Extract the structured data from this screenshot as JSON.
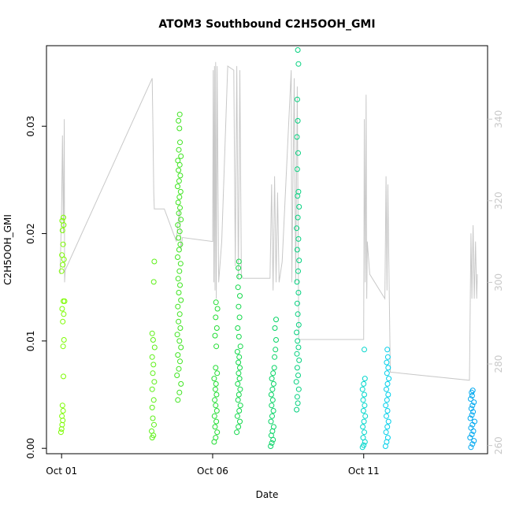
{
  "chart_data": {
    "type": "scatter",
    "title": "ATOM3 Southbound C2H5OOH_GMI",
    "xlabel": "Date",
    "ylabel": "C2H5OOH_GMI",
    "x_ticks": [
      "Oct 01",
      "Oct 06",
      "Oct 11"
    ],
    "y_ticks": [
      "0.00",
      "0.01",
      "0.02",
      "0.03"
    ],
    "y2_ticks": [
      "260",
      "280",
      "300",
      "320",
      "340"
    ],
    "xlim": [
      -0.5,
      14.1
    ],
    "ylim": [
      -0.0005,
      0.0375
    ],
    "y2lim": [
      258,
      358
    ],
    "grid": false,
    "point_style": "open-circle",
    "line_color": "#c8c8c8",
    "flights": [
      {
        "day": 0.0,
        "color": "#7CFC00",
        "points": [
          [
            -0.02,
            0.0015
          ],
          [
            0.0,
            0.0018
          ],
          [
            0.02,
            0.0022
          ],
          [
            0.04,
            0.0026
          ],
          [
            0.01,
            0.003
          ],
          [
            0.05,
            0.0035
          ],
          [
            0.03,
            0.004
          ],
          [
            0.06,
            0.0067
          ],
          [
            0.05,
            0.0095
          ],
          [
            0.08,
            0.0101
          ],
          [
            0.04,
            0.0118
          ],
          [
            0.07,
            0.0125
          ],
          [
            0.02,
            0.013
          ],
          [
            0.06,
            0.0137
          ],
          [
            0.1,
            0.0137
          ],
          [
            0.0,
            0.0165
          ],
          [
            0.04,
            0.0171
          ],
          [
            0.08,
            0.0176
          ],
          [
            0.01,
            0.018
          ],
          [
            0.05,
            0.019
          ],
          [
            0.03,
            0.0203
          ],
          [
            0.07,
            0.0208
          ],
          [
            0.02,
            0.0212
          ],
          [
            0.06,
            0.0215
          ]
        ]
      },
      {
        "day": 3.0,
        "color": "#5CF016",
        "points": [
          [
            3.0,
            0.001
          ],
          [
            3.04,
            0.0012
          ],
          [
            2.98,
            0.0016
          ],
          [
            3.06,
            0.0022
          ],
          [
            3.02,
            0.0028
          ],
          [
            3.0,
            0.0038
          ],
          [
            3.05,
            0.0045
          ],
          [
            3.0,
            0.0055
          ],
          [
            3.07,
            0.0062
          ],
          [
            3.02,
            0.007
          ],
          [
            3.04,
            0.0078
          ],
          [
            3.0,
            0.0085
          ],
          [
            3.08,
            0.0094
          ],
          [
            3.03,
            0.0101
          ],
          [
            3.0,
            0.0107
          ],
          [
            3.05,
            0.0155
          ],
          [
            3.07,
            0.0174
          ]
        ]
      },
      {
        "day": 3.9,
        "color": "#3EE420",
        "points": [
          [
            3.85,
            0.0045
          ],
          [
            3.9,
            0.0052
          ],
          [
            3.95,
            0.006
          ],
          [
            3.82,
            0.0068
          ],
          [
            3.88,
            0.0074
          ],
          [
            3.92,
            0.0081
          ],
          [
            3.85,
            0.0087
          ],
          [
            3.95,
            0.0094
          ],
          [
            3.9,
            0.01
          ],
          [
            3.83,
            0.0106
          ],
          [
            3.93,
            0.0112
          ],
          [
            3.87,
            0.0118
          ],
          [
            3.91,
            0.0125
          ],
          [
            3.85,
            0.0132
          ],
          [
            3.95,
            0.0138
          ],
          [
            3.88,
            0.0145
          ],
          [
            3.92,
            0.0152
          ],
          [
            3.86,
            0.0158
          ],
          [
            3.9,
            0.0165
          ],
          [
            3.94,
            0.0172
          ],
          [
            3.84,
            0.0178
          ],
          [
            3.89,
            0.0185
          ],
          [
            3.93,
            0.019
          ],
          [
            3.87,
            0.0196
          ],
          [
            3.91,
            0.0202
          ],
          [
            3.85,
            0.0208
          ],
          [
            3.95,
            0.0213
          ],
          [
            3.88,
            0.0219
          ],
          [
            3.92,
            0.0224
          ],
          [
            3.86,
            0.0229
          ],
          [
            3.9,
            0.0234
          ],
          [
            3.94,
            0.0239
          ],
          [
            3.84,
            0.0244
          ],
          [
            3.89,
            0.0249
          ],
          [
            3.93,
            0.0254
          ],
          [
            3.87,
            0.0259
          ],
          [
            3.91,
            0.0264
          ],
          [
            3.85,
            0.0268
          ],
          [
            3.95,
            0.0272
          ],
          [
            3.88,
            0.0278
          ],
          [
            3.92,
            0.0285
          ],
          [
            3.9,
            0.0298
          ],
          [
            3.87,
            0.0305
          ],
          [
            3.91,
            0.0311
          ]
        ]
      },
      {
        "day": 5.1,
        "color": "#22DD33",
        "points": [
          [
            5.05,
            0.0006
          ],
          [
            5.1,
            0.001
          ],
          [
            5.15,
            0.0015
          ],
          [
            5.08,
            0.002
          ],
          [
            5.12,
            0.0025
          ],
          [
            5.06,
            0.003
          ],
          [
            5.14,
            0.0035
          ],
          [
            5.1,
            0.004
          ],
          [
            5.07,
            0.0045
          ],
          [
            5.13,
            0.005
          ],
          [
            5.09,
            0.0055
          ],
          [
            5.11,
            0.006
          ],
          [
            5.05,
            0.0065
          ],
          [
            5.15,
            0.007
          ],
          [
            5.1,
            0.0075
          ],
          [
            5.12,
            0.0095
          ],
          [
            5.08,
            0.0105
          ],
          [
            5.14,
            0.0112
          ],
          [
            5.1,
            0.0122
          ],
          [
            5.16,
            0.013
          ],
          [
            5.11,
            0.0136
          ]
        ]
      },
      {
        "day": 5.85,
        "color": "#12D84A",
        "points": [
          [
            5.8,
            0.0015
          ],
          [
            5.85,
            0.002
          ],
          [
            5.9,
            0.0025
          ],
          [
            5.82,
            0.003
          ],
          [
            5.88,
            0.0035
          ],
          [
            5.92,
            0.004
          ],
          [
            5.84,
            0.0045
          ],
          [
            5.87,
            0.005
          ],
          [
            5.91,
            0.0055
          ],
          [
            5.83,
            0.006
          ],
          [
            5.89,
            0.0065
          ],
          [
            5.86,
            0.007
          ],
          [
            5.9,
            0.0075
          ],
          [
            5.85,
            0.008
          ],
          [
            5.88,
            0.0085
          ],
          [
            5.82,
            0.009
          ],
          [
            5.92,
            0.0095
          ],
          [
            5.87,
            0.0104
          ],
          [
            5.83,
            0.0112
          ],
          [
            5.89,
            0.0122
          ],
          [
            5.86,
            0.0132
          ],
          [
            5.9,
            0.0142
          ],
          [
            5.84,
            0.015
          ],
          [
            5.88,
            0.016
          ],
          [
            5.85,
            0.0168
          ],
          [
            5.87,
            0.0174
          ]
        ]
      },
      {
        "day": 7.0,
        "color": "#08D466",
        "points": [
          [
            6.92,
            0.0002
          ],
          [
            6.96,
            0.0005
          ],
          [
            7.0,
            0.0008
          ],
          [
            6.94,
            0.0012
          ],
          [
            6.98,
            0.0016
          ],
          [
            7.02,
            0.002
          ],
          [
            6.93,
            0.0025
          ],
          [
            6.97,
            0.003
          ],
          [
            7.01,
            0.0035
          ],
          [
            6.95,
            0.004
          ],
          [
            6.99,
            0.0045
          ],
          [
            6.94,
            0.005
          ],
          [
            6.98,
            0.0055
          ],
          [
            7.02,
            0.006
          ],
          [
            6.96,
            0.0065
          ],
          [
            7.0,
            0.007
          ],
          [
            7.04,
            0.0075
          ],
          [
            7.05,
            0.0085
          ],
          [
            7.08,
            0.0092
          ],
          [
            7.1,
            0.0101
          ],
          [
            7.06,
            0.0112
          ],
          [
            7.1,
            0.012
          ]
        ]
      },
      {
        "day": 7.8,
        "color": "#04D17F",
        "points": [
          [
            7.78,
            0.0036
          ],
          [
            7.82,
            0.0042
          ],
          [
            7.8,
            0.0048
          ],
          [
            7.85,
            0.0055
          ],
          [
            7.77,
            0.0062
          ],
          [
            7.83,
            0.0068
          ],
          [
            7.8,
            0.0075
          ],
          [
            7.86,
            0.0082
          ],
          [
            7.79,
            0.0088
          ],
          [
            7.84,
            0.0094
          ],
          [
            7.81,
            0.01
          ],
          [
            7.78,
            0.0108
          ],
          [
            7.85,
            0.0115
          ],
          [
            7.82,
            0.0125
          ],
          [
            7.8,
            0.0135
          ],
          [
            7.84,
            0.0145
          ],
          [
            7.79,
            0.0155
          ],
          [
            7.83,
            0.0165
          ],
          [
            7.86,
            0.0175
          ],
          [
            7.8,
            0.0185
          ],
          [
            7.84,
            0.0195
          ],
          [
            7.78,
            0.0205
          ],
          [
            7.82,
            0.0215
          ],
          [
            7.86,
            0.0225
          ],
          [
            7.81,
            0.0235
          ],
          [
            7.84,
            0.0239
          ],
          [
            7.8,
            0.026
          ],
          [
            7.83,
            0.0275
          ],
          [
            7.79,
            0.029
          ],
          [
            7.82,
            0.0305
          ],
          [
            7.8,
            0.0325
          ],
          [
            7.84,
            0.0358
          ],
          [
            7.82,
            0.0371
          ]
        ]
      },
      {
        "day": 10.0,
        "color": "#00D6CC",
        "points": [
          [
            9.96,
            0.0001
          ],
          [
            10.0,
            0.0003
          ],
          [
            10.04,
            0.0006
          ],
          [
            9.98,
            0.001
          ],
          [
            10.02,
            0.0015
          ],
          [
            9.97,
            0.002
          ],
          [
            10.01,
            0.0025
          ],
          [
            10.05,
            0.003
          ],
          [
            9.99,
            0.0035
          ],
          [
            10.03,
            0.004
          ],
          [
            9.98,
            0.0045
          ],
          [
            10.02,
            0.005
          ],
          [
            9.96,
            0.0055
          ],
          [
            10.0,
            0.006
          ],
          [
            10.04,
            0.0065
          ],
          [
            10.02,
            0.0092
          ]
        ]
      },
      {
        "day": 11.8,
        "color": "#00CFEA",
        "points": [
          [
            10.72,
            0.0002
          ],
          [
            10.76,
            0.0006
          ],
          [
            10.8,
            0.001
          ],
          [
            10.74,
            0.0015
          ],
          [
            10.78,
            0.002
          ],
          [
            10.82,
            0.0025
          ],
          [
            10.75,
            0.003
          ],
          [
            10.79,
            0.0035
          ],
          [
            10.73,
            0.004
          ],
          [
            10.77,
            0.0045
          ],
          [
            10.81,
            0.005
          ],
          [
            10.75,
            0.0055
          ],
          [
            10.79,
            0.006
          ],
          [
            10.83,
            0.0065
          ],
          [
            10.77,
            0.007
          ],
          [
            10.81,
            0.0075
          ],
          [
            10.76,
            0.008
          ],
          [
            10.8,
            0.0085
          ],
          [
            10.78,
            0.0092
          ]
        ]
      },
      {
        "day": 13.0,
        "color": "#00A8F0",
        "points": [
          [
            13.55,
            0.0001
          ],
          [
            13.6,
            0.0004
          ],
          [
            13.65,
            0.0007
          ],
          [
            13.52,
            0.001
          ],
          [
            13.58,
            0.0013
          ],
          [
            13.63,
            0.0016
          ],
          [
            13.55,
            0.0019
          ],
          [
            13.6,
            0.0022
          ],
          [
            13.67,
            0.0025
          ],
          [
            13.53,
            0.0028
          ],
          [
            13.58,
            0.0031
          ],
          [
            13.62,
            0.0034
          ],
          [
            13.56,
            0.0037
          ],
          [
            13.6,
            0.004
          ],
          [
            13.65,
            0.0043
          ],
          [
            13.54,
            0.0046
          ],
          [
            13.59,
            0.0049
          ],
          [
            13.57,
            0.0052
          ],
          [
            13.61,
            0.0054
          ]
        ]
      }
    ],
    "altitude_line": [
      [
        -0.05,
        302
      ],
      [
        0.0,
        318
      ],
      [
        0.03,
        336
      ],
      [
        0.06,
        312
      ],
      [
        0.09,
        340
      ],
      [
        0.1,
        300
      ],
      [
        0.12,
        303
      ],
      [
        3.0,
        350
      ],
      [
        3.02,
        340
      ],
      [
        3.05,
        322
      ],
      [
        3.07,
        318
      ],
      [
        3.4,
        318
      ],
      [
        3.8,
        310
      ],
      [
        3.82,
        312
      ],
      [
        3.9,
        318
      ],
      [
        3.95,
        308
      ],
      [
        4.0,
        311
      ],
      [
        5.0,
        310
      ],
      [
        5.02,
        352
      ],
      [
        5.04,
        300
      ],
      [
        5.06,
        353
      ],
      [
        5.08,
        298
      ],
      [
        5.1,
        354
      ],
      [
        5.12,
        296
      ],
      [
        5.15,
        353
      ],
      [
        5.2,
        300
      ],
      [
        5.3,
        310
      ],
      [
        5.5,
        353
      ],
      [
        5.7,
        352
      ],
      [
        5.75,
        304
      ],
      [
        5.8,
        353
      ],
      [
        5.85,
        301
      ],
      [
        5.9,
        352
      ],
      [
        5.95,
        302
      ],
      [
        6.0,
        301
      ],
      [
        6.9,
        301
      ],
      [
        6.95,
        324
      ],
      [
        7.0,
        298
      ],
      [
        7.05,
        326
      ],
      [
        7.1,
        300
      ],
      [
        7.15,
        322
      ],
      [
        7.2,
        300
      ],
      [
        7.3,
        305
      ],
      [
        7.6,
        352
      ],
      [
        7.62,
        300
      ],
      [
        7.7,
        350
      ],
      [
        7.75,
        300
      ],
      [
        7.8,
        348
      ],
      [
        7.85,
        286
      ],
      [
        9.9,
        286
      ],
      [
        10.0,
        286
      ],
      [
        10.02,
        340
      ],
      [
        10.05,
        300
      ],
      [
        10.08,
        346
      ],
      [
        10.1,
        296
      ],
      [
        10.12,
        310
      ],
      [
        10.2,
        302
      ],
      [
        10.7,
        296
      ],
      [
        10.74,
        326
      ],
      [
        10.77,
        298
      ],
      [
        10.8,
        324
      ],
      [
        10.84,
        300
      ],
      [
        10.88,
        278
      ],
      [
        13.5,
        276
      ],
      [
        13.55,
        312
      ],
      [
        13.58,
        296
      ],
      [
        13.62,
        314
      ],
      [
        13.66,
        296
      ],
      [
        13.7,
        310
      ],
      [
        13.74,
        296
      ],
      [
        13.76,
        302
      ]
    ]
  }
}
